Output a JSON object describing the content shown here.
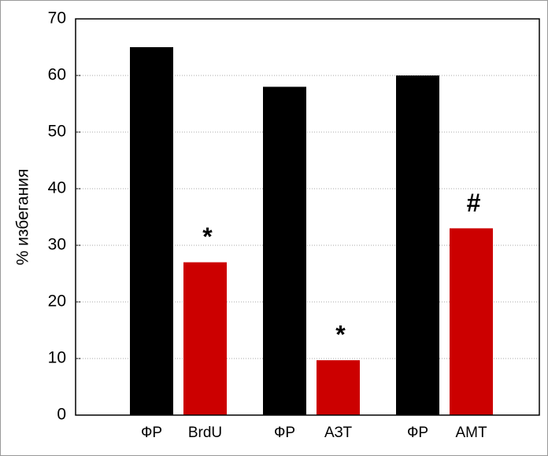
{
  "chart_data": {
    "type": "bar",
    "y_label": "% избегания",
    "categories": [
      "ФР",
      "BrdU",
      "ФР",
      "АЗТ",
      "ФР",
      "АМТ"
    ],
    "values": [
      65,
      27,
      58,
      9.7,
      60,
      33
    ],
    "colors": [
      "#000000",
      "#cc0000",
      "#000000",
      "#cc0000",
      "#000000",
      "#cc0000"
    ],
    "annotations": [
      null,
      "*",
      null,
      "*",
      null,
      "#"
    ],
    "ylim": [
      0,
      70
    ],
    "yticks": [
      0,
      10,
      20,
      30,
      40,
      50,
      60,
      70
    ],
    "grid": true
  }
}
